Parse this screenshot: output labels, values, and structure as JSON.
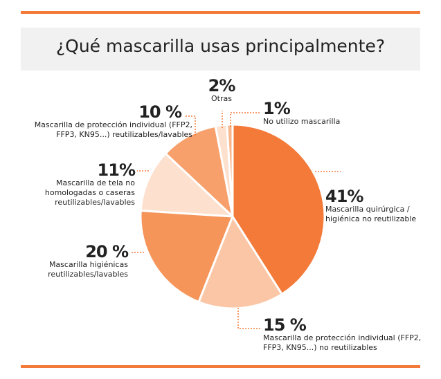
{
  "chart_data": {
    "type": "pie",
    "title": "¿Qué mascarilla usas principalmente?",
    "categories": [
      "Mascarilla quirúrgica / higiénica no reutilizable",
      "Mascarilla de protección individual (FFP2, FFP3, KN95...) no reutilizables",
      "Mascarilla higiénicas reutilizables/lavables",
      "Mascarilla de tela no homologadas o caseras reutilizables/lavables",
      "Mascarilla de protección individual (FFP2, FFP3, KN95...) reutilizables/lavables",
      "Otras",
      "No utilizo mascarilla"
    ],
    "values": [
      41,
      15,
      20,
      11,
      10,
      2,
      1
    ],
    "value_labels": [
      "41%",
      "15 %",
      "20 %",
      "11%",
      "10 %",
      "2%",
      "1%"
    ],
    "colors": [
      "#f47a3a",
      "#fbc6a5",
      "#f6955a",
      "#fde0cd",
      "#f7a06c",
      "#fde0cd",
      "#f9b68c"
    ]
  }
}
